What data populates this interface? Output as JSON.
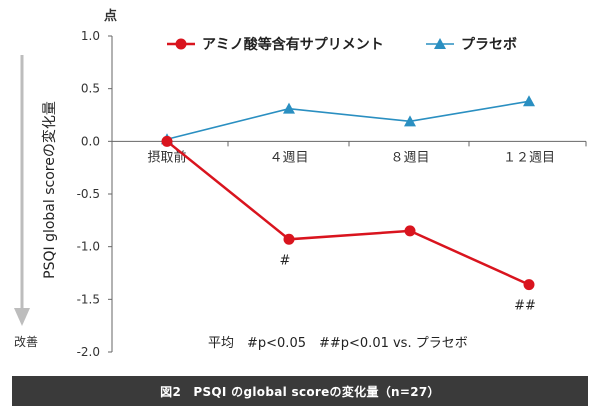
{
  "chart_data": {
    "type": "line",
    "categories": [
      "摂取前",
      "４週目",
      "８週目",
      "１２週目"
    ],
    "series": [
      {
        "name": "アミノ酸等含有サプリメント",
        "values": [
          0.0,
          -0.93,
          -0.85,
          -1.36
        ],
        "color": "#d9141e",
        "marker": "circle",
        "annotations": [
          "",
          "#",
          "",
          "##"
        ]
      },
      {
        "name": "プラセボ",
        "values": [
          0.02,
          0.31,
          0.19,
          0.38
        ],
        "color": "#2a8fc1",
        "marker": "triangle"
      }
    ],
    "ylabel": "PSQI global scoreの変化量",
    "yunit": "点",
    "ylim": [
      -2.0,
      1.0
    ],
    "yticks": [
      "1.0",
      "0.5",
      "0.0",
      "-0.5",
      "-1.0",
      "-1.5",
      "-2.0"
    ],
    "improvement_label": "改善",
    "note": "平均　#p<0.05　##p<0.01 vs. プラセボ",
    "legend_position": "top"
  },
  "caption": "図2　PSQI のglobal scoreの変化量（n=27）"
}
